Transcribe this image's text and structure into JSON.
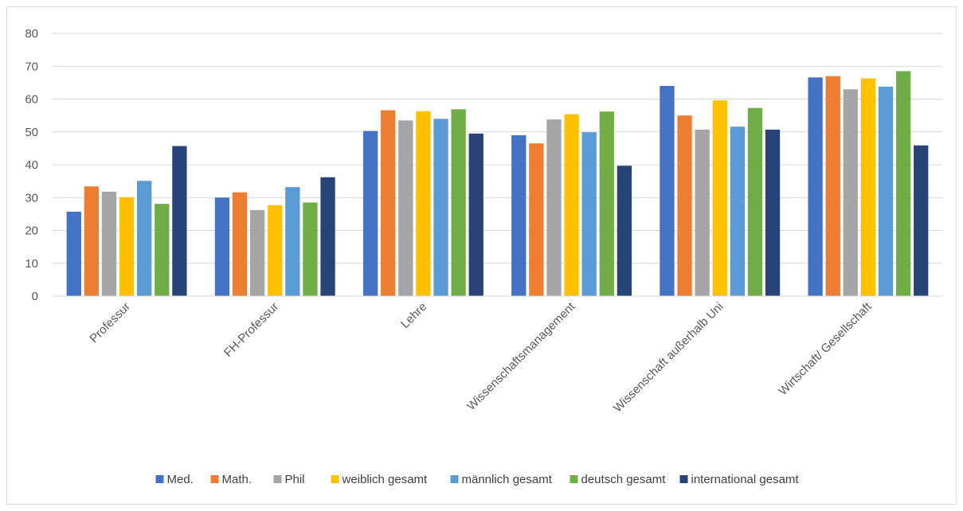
{
  "chart_data": {
    "type": "bar",
    "title": "",
    "xlabel": "",
    "ylabel": "",
    "ylim": [
      0,
      80
    ],
    "yticks": [
      0,
      10,
      20,
      30,
      40,
      50,
      60,
      70,
      80
    ],
    "grid": true,
    "legend_position": "bottom",
    "categories": [
      "Professur",
      "FH-Professur",
      "Lehre",
      "Wissenschaftsmanagement",
      "Wissenschaft außerhalb Uni",
      "Wirtschaft/ Gesellschaft"
    ],
    "series": [
      {
        "name": "Med.",
        "color": "#4472C4",
        "values": [
          25.7,
          30.0,
          50.3,
          49.0,
          64.0,
          66.6
        ]
      },
      {
        "name": "Math.",
        "color": "#ED7D31",
        "values": [
          33.4,
          31.6,
          56.6,
          46.5,
          55.0,
          67.0
        ]
      },
      {
        "name": "Phil",
        "color": "#A5A5A5",
        "values": [
          31.8,
          26.2,
          53.5,
          53.8,
          50.7,
          63.0
        ]
      },
      {
        "name": "weiblich gesamt",
        "color": "#FFC000",
        "values": [
          30.1,
          27.7,
          56.3,
          55.4,
          59.6,
          66.3
        ]
      },
      {
        "name": "männlich gesamt",
        "color": "#5B9BD5",
        "values": [
          35.1,
          33.2,
          54.0,
          49.9,
          51.6,
          63.8
        ]
      },
      {
        "name": "deutsch gesamt",
        "color": "#70AD47",
        "values": [
          28.1,
          28.5,
          56.9,
          56.2,
          57.3,
          68.5
        ]
      },
      {
        "name": "international gesamt",
        "color": "#264478",
        "values": [
          45.7,
          36.2,
          49.5,
          39.7,
          50.7,
          45.9
        ]
      }
    ]
  }
}
